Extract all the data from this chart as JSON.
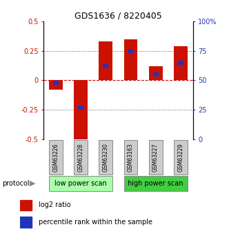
{
  "title": "GDS1636 / 8220405",
  "samples": [
    "GSM63226",
    "GSM63228",
    "GSM63230",
    "GSM63163",
    "GSM63227",
    "GSM63229"
  ],
  "log2_ratio": [
    -0.08,
    -0.5,
    0.33,
    0.35,
    0.12,
    0.29
  ],
  "percentile_rank": [
    48,
    27,
    62,
    75,
    55,
    65
  ],
  "bar_color_red": "#cc1100",
  "bar_color_blue": "#2233bb",
  "ylim_left": [
    -0.5,
    0.5
  ],
  "ylim_right": [
    0,
    100
  ],
  "yticks_left": [
    -0.5,
    -0.25,
    0.0,
    0.25,
    0.5
  ],
  "yticks_right": [
    0,
    25,
    50,
    75,
    100
  ],
  "ytick_labels_left": [
    "-0.5",
    "-0.25",
    "0",
    "0.25",
    "0.5"
  ],
  "ytick_labels_right": [
    "0",
    "25",
    "50",
    "75",
    "100%"
  ],
  "protocol_groups": [
    {
      "label": "low power scan",
      "samples": [
        0,
        1,
        2
      ],
      "color": "#aaffaa"
    },
    {
      "label": "high power scan",
      "samples": [
        3,
        4,
        5
      ],
      "color": "#44cc44"
    }
  ],
  "legend_items": [
    {
      "color": "#cc1100",
      "label": "log2 ratio"
    },
    {
      "color": "#2233bb",
      "label": "percentile rank within the sample"
    }
  ],
  "zero_line_color": "#cc0000",
  "dotted_line_color": "#555555",
  "bar_width": 0.55,
  "blue_bar_width": 0.22
}
